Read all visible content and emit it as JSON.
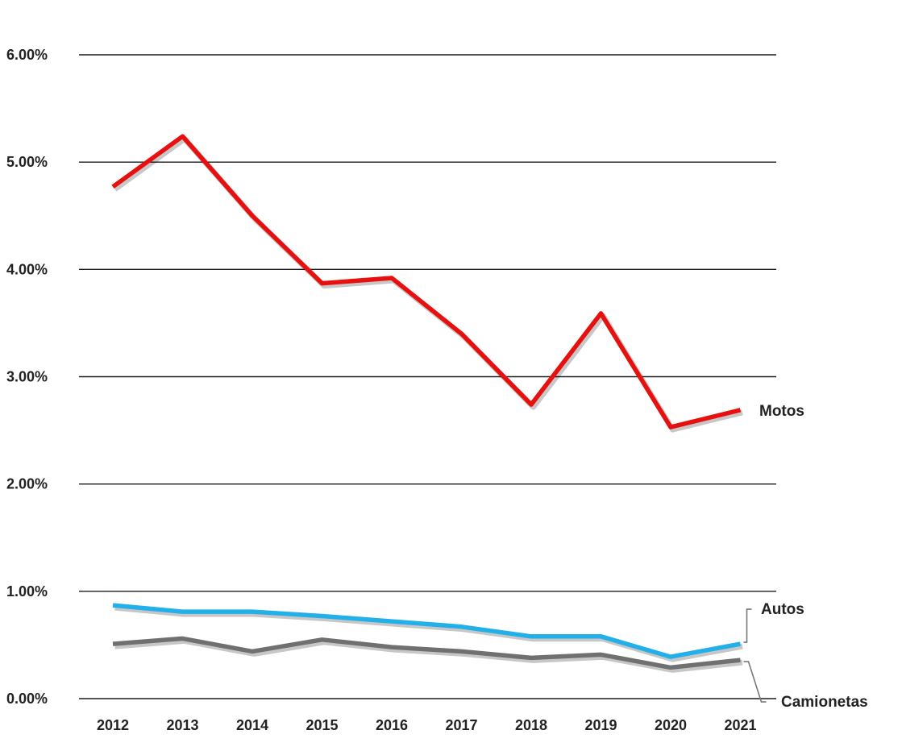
{
  "chart_data": {
    "type": "line",
    "title": "",
    "xlabel": "",
    "ylabel": "",
    "categories": [
      "2012",
      "2013",
      "2014",
      "2015",
      "2016",
      "2017",
      "2018",
      "2019",
      "2020",
      "2021"
    ],
    "ylim": [
      0,
      0.06
    ],
    "yticks": [
      0,
      0.01,
      0.02,
      0.03,
      0.04,
      0.05,
      0.06
    ],
    "ytick_labels": [
      "0.00%",
      "1.00%",
      "2.00%",
      "3.00%",
      "4.00%",
      "5.00%",
      "6.00%"
    ],
    "grid": "horizontal",
    "legend": "none (series labelled at line ends)",
    "series": [
      {
        "name": "Motos",
        "color": "#e8100f",
        "values": [
          0.0477,
          0.0524,
          0.045,
          0.0387,
          0.0392,
          0.034,
          0.0274,
          0.0359,
          0.0253,
          0.0269
        ]
      },
      {
        "name": "Autos",
        "color": "#22b0ea",
        "values": [
          0.0087,
          0.0081,
          0.0081,
          0.0077,
          0.0072,
          0.0067,
          0.0058,
          0.0058,
          0.0039,
          0.0051
        ]
      },
      {
        "name": "Camionetas",
        "color": "#707070",
        "values": [
          0.0051,
          0.0056,
          0.0044,
          0.0055,
          0.0048,
          0.0044,
          0.0038,
          0.0041,
          0.0029,
          0.0036
        ]
      }
    ]
  }
}
